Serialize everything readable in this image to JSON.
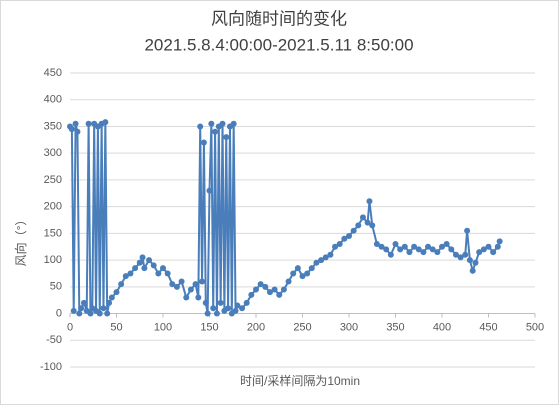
{
  "chart_data": {
    "type": "line",
    "title": "风向随时间的变化",
    "subtitle": "2021.5.8.4:00:00-2021.5.11 8:50:00",
    "xlabel": "时间/采样间隔为10min",
    "ylabel": "风向（°）",
    "xlim": [
      0,
      500
    ],
    "xticks": [
      0,
      50,
      100,
      150,
      200,
      250,
      300,
      350,
      400,
      450,
      500
    ],
    "ylim": [
      -100,
      450
    ],
    "yticks": [
      -100,
      -50,
      0,
      50,
      100,
      150,
      200,
      250,
      300,
      350,
      400,
      450
    ],
    "grid": true,
    "series": [
      {
        "name": "风向",
        "color": "#4a7ebb",
        "x": [
          0,
          2,
          4,
          6,
          8,
          10,
          12,
          15,
          18,
          20,
          22,
          24,
          26,
          28,
          30,
          32,
          34,
          36,
          38,
          40,
          42,
          45,
          50,
          55,
          60,
          65,
          70,
          75,
          78,
          80,
          85,
          90,
          95,
          100,
          105,
          110,
          115,
          120,
          125,
          130,
          135,
          138,
          140,
          142,
          144,
          146,
          148,
          150,
          152,
          154,
          156,
          158,
          160,
          162,
          164,
          166,
          168,
          170,
          172,
          174,
          176,
          178,
          180,
          185,
          190,
          195,
          200,
          205,
          210,
          215,
          220,
          225,
          230,
          235,
          240,
          245,
          250,
          255,
          260,
          265,
          270,
          275,
          280,
          285,
          290,
          295,
          300,
          305,
          310,
          315,
          320,
          322,
          325,
          330,
          335,
          340,
          345,
          350,
          355,
          360,
          365,
          370,
          375,
          380,
          385,
          390,
          395,
          400,
          405,
          410,
          415,
          420,
          425,
          427,
          430,
          433,
          436,
          440,
          445,
          450,
          455,
          460,
          462
        ],
        "values": [
          350,
          345,
          5,
          355,
          340,
          0,
          10,
          20,
          5,
          355,
          0,
          10,
          355,
          5,
          350,
          0,
          355,
          10,
          358,
          0,
          20,
          30,
          40,
          55,
          70,
          75,
          85,
          95,
          105,
          85,
          100,
          90,
          75,
          85,
          75,
          55,
          50,
          60,
          30,
          45,
          55,
          30,
          350,
          60,
          320,
          20,
          0,
          230,
          355,
          10,
          340,
          0,
          350,
          20,
          355,
          5,
          330,
          10,
          350,
          0,
          355,
          5,
          15,
          10,
          20,
          35,
          45,
          55,
          50,
          40,
          45,
          35,
          45,
          60,
          75,
          85,
          70,
          75,
          85,
          95,
          100,
          105,
          110,
          125,
          130,
          140,
          145,
          155,
          165,
          180,
          170,
          210,
          165,
          130,
          125,
          120,
          110,
          130,
          120,
          125,
          115,
          125,
          120,
          115,
          125,
          120,
          115,
          125,
          130,
          120,
          110,
          105,
          110,
          155,
          100,
          80,
          95,
          115,
          120,
          125,
          115,
          125,
          135
        ]
      }
    ]
  }
}
